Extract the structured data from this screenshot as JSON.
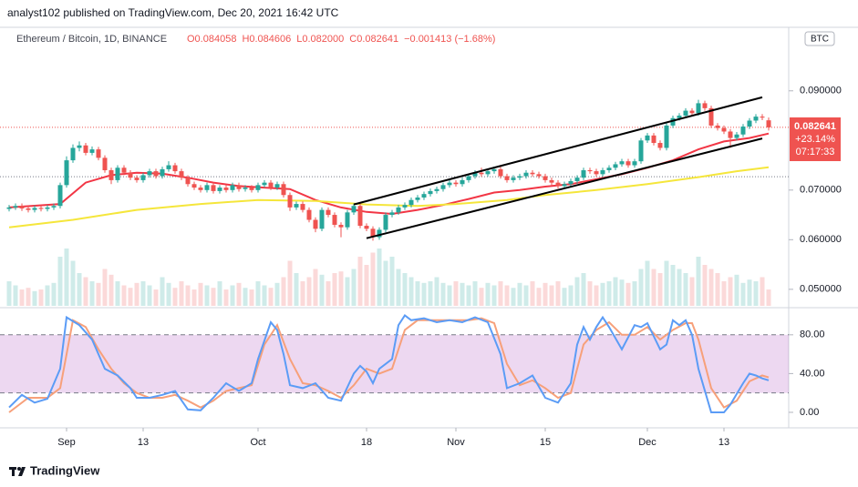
{
  "chart_data": {
    "type": "candlestick",
    "header": "analyst102 published on TradingView.com, Dec 20, 2021 16:42 UTC",
    "symbol": "Ethereum / Bitcoin, 1D, BINANCE",
    "ohlc_text": [
      "O0.084058",
      "H0.084606",
      "L0.082000",
      "C0.082641",
      "−0.001413 (−1.68%)"
    ],
    "currency": "BTC",
    "price_tag": [
      "0.082641",
      "+23.14%",
      "07:17:33"
    ],
    "last_price": 0.082641,
    "reference_price": 0.0727,
    "ylim": [
      0.0463,
      0.1028
    ],
    "yticks": [
      {
        "value": 0.09,
        "label": "0.090000"
      },
      {
        "value": 0.07,
        "label": "0.070000"
      },
      {
        "value": 0.06,
        "label": "0.060000"
      },
      {
        "value": 0.05,
        "label": "0.050000"
      }
    ],
    "xlim": [
      0,
      119
    ],
    "xticks": [
      {
        "value": 9,
        "label": "Sep"
      },
      {
        "value": 21,
        "label": "13"
      },
      {
        "value": 39,
        "label": "Oct"
      },
      {
        "value": 56,
        "label": "18"
      },
      {
        "value": 70,
        "label": "Nov"
      },
      {
        "value": 84,
        "label": "15"
      },
      {
        "value": 100,
        "label": "Dec"
      },
      {
        "value": 112,
        "label": "13"
      }
    ],
    "up_color": "#26a69a",
    "down_color": "#ef5350",
    "ohlc": {
      "open": [
        0.0662,
        0.0665,
        0.0668,
        0.0663,
        0.066,
        0.0664,
        0.0662,
        0.0665,
        0.0668,
        0.071,
        0.076,
        0.0785,
        0.079,
        0.0775,
        0.0782,
        0.0765,
        0.074,
        0.072,
        0.0745,
        0.0735,
        0.0725,
        0.072,
        0.073,
        0.0738,
        0.0728,
        0.0742,
        0.075,
        0.0738,
        0.0725,
        0.0712,
        0.0705,
        0.07,
        0.071,
        0.0698,
        0.0705,
        0.07,
        0.071,
        0.0702,
        0.0705,
        0.07,
        0.071,
        0.0715,
        0.0705,
        0.0712,
        0.069,
        0.0665,
        0.0672,
        0.066,
        0.064,
        0.0622,
        0.066,
        0.065,
        0.063,
        0.0625,
        0.0655,
        0.0668,
        0.0628,
        0.0622,
        0.0605,
        0.062,
        0.065,
        0.0655,
        0.0665,
        0.067,
        0.068,
        0.0685,
        0.0692,
        0.0698,
        0.0702,
        0.071,
        0.0715,
        0.0712,
        0.072,
        0.0728,
        0.0735,
        0.0732,
        0.0738,
        0.0742,
        0.0728,
        0.072,
        0.0725,
        0.0728,
        0.0735,
        0.0732,
        0.0728,
        0.072,
        0.0715,
        0.0708,
        0.0712,
        0.0718,
        0.0725,
        0.074,
        0.0738,
        0.0732,
        0.074,
        0.0745,
        0.0752,
        0.0758,
        0.075,
        0.0758,
        0.08,
        0.081,
        0.0795,
        0.0785,
        0.083,
        0.0845,
        0.085,
        0.086,
        0.0855,
        0.0875,
        0.0865,
        0.083,
        0.0825,
        0.0818,
        0.0805,
        0.0812,
        0.0828,
        0.084,
        0.0848,
        0.084058
      ],
      "high": [
        0.067,
        0.0673,
        0.0673,
        0.0668,
        0.0669,
        0.0669,
        0.067,
        0.0673,
        0.0715,
        0.0768,
        0.0792,
        0.0798,
        0.0795,
        0.0788,
        0.0787,
        0.077,
        0.0745,
        0.075,
        0.075,
        0.074,
        0.073,
        0.0735,
        0.0743,
        0.0743,
        0.0747,
        0.0758,
        0.0755,
        0.0743,
        0.073,
        0.0717,
        0.071,
        0.0715,
        0.0715,
        0.071,
        0.071,
        0.0715,
        0.0715,
        0.071,
        0.071,
        0.0715,
        0.072,
        0.072,
        0.0717,
        0.0717,
        0.0695,
        0.0677,
        0.0677,
        0.0665,
        0.0645,
        0.0665,
        0.0665,
        0.0655,
        0.0635,
        0.066,
        0.0673,
        0.0673,
        0.0633,
        0.0627,
        0.0625,
        0.0655,
        0.066,
        0.067,
        0.0675,
        0.0685,
        0.069,
        0.0697,
        0.0703,
        0.0707,
        0.0715,
        0.072,
        0.072,
        0.0725,
        0.0733,
        0.074,
        0.0745,
        0.0743,
        0.0747,
        0.0747,
        0.0733,
        0.073,
        0.0733,
        0.074,
        0.074,
        0.0737,
        0.0733,
        0.0725,
        0.072,
        0.0717,
        0.0723,
        0.073,
        0.0745,
        0.0745,
        0.0743,
        0.0745,
        0.075,
        0.0757,
        0.0763,
        0.0763,
        0.0763,
        0.0805,
        0.0815,
        0.0815,
        0.08,
        0.0835,
        0.085,
        0.0855,
        0.0865,
        0.0865,
        0.0882,
        0.088,
        0.087,
        0.0835,
        0.083,
        0.0823,
        0.0817,
        0.0833,
        0.0845,
        0.0853,
        0.0853,
        0.084606
      ],
      "low": [
        0.0657,
        0.066,
        0.0658,
        0.0655,
        0.0655,
        0.0657,
        0.0657,
        0.066,
        0.0663,
        0.0705,
        0.0755,
        0.0778,
        0.077,
        0.077,
        0.076,
        0.0735,
        0.0712,
        0.0715,
        0.073,
        0.072,
        0.0715,
        0.0715,
        0.0725,
        0.0723,
        0.0723,
        0.0737,
        0.0733,
        0.072,
        0.0707,
        0.07,
        0.0695,
        0.0695,
        0.0693,
        0.0693,
        0.0695,
        0.0695,
        0.0697,
        0.0697,
        0.0695,
        0.0695,
        0.0705,
        0.07,
        0.07,
        0.0685,
        0.0658,
        0.066,
        0.0655,
        0.0635,
        0.0615,
        0.0617,
        0.0645,
        0.0625,
        0.0605,
        0.062,
        0.065,
        0.0623,
        0.0617,
        0.0598,
        0.06,
        0.0615,
        0.0645,
        0.065,
        0.066,
        0.0665,
        0.0675,
        0.068,
        0.0687,
        0.0693,
        0.0697,
        0.0705,
        0.0707,
        0.0707,
        0.0715,
        0.0723,
        0.0727,
        0.0727,
        0.0733,
        0.0723,
        0.0715,
        0.0715,
        0.072,
        0.0723,
        0.0727,
        0.0723,
        0.0715,
        0.071,
        0.0703,
        0.0703,
        0.0707,
        0.0713,
        0.072,
        0.0733,
        0.0727,
        0.0727,
        0.0735,
        0.074,
        0.0747,
        0.0745,
        0.0745,
        0.0753,
        0.0795,
        0.079,
        0.078,
        0.078,
        0.0825,
        0.084,
        0.0845,
        0.085,
        0.085,
        0.086,
        0.0825,
        0.082,
        0.0813,
        0.0785,
        0.08,
        0.0807,
        0.0823,
        0.0835,
        0.0841,
        0.082
      ],
      "close": [
        0.0665,
        0.0668,
        0.0663,
        0.066,
        0.0664,
        0.0662,
        0.0665,
        0.0668,
        0.071,
        0.076,
        0.0785,
        0.079,
        0.0775,
        0.0782,
        0.0765,
        0.074,
        0.072,
        0.0745,
        0.0735,
        0.0725,
        0.072,
        0.073,
        0.0738,
        0.0728,
        0.0742,
        0.075,
        0.0738,
        0.0725,
        0.0712,
        0.0705,
        0.07,
        0.071,
        0.0698,
        0.0705,
        0.07,
        0.071,
        0.0702,
        0.0705,
        0.07,
        0.071,
        0.0715,
        0.0705,
        0.0712,
        0.069,
        0.0665,
        0.0672,
        0.066,
        0.064,
        0.0622,
        0.066,
        0.065,
        0.063,
        0.0625,
        0.0655,
        0.0668,
        0.0628,
        0.0622,
        0.0605,
        0.062,
        0.065,
        0.0655,
        0.0665,
        0.067,
        0.068,
        0.0685,
        0.0692,
        0.0698,
        0.0702,
        0.071,
        0.0715,
        0.0712,
        0.072,
        0.0728,
        0.0735,
        0.0732,
        0.0738,
        0.0742,
        0.0728,
        0.072,
        0.0725,
        0.0728,
        0.0735,
        0.0732,
        0.0728,
        0.072,
        0.0715,
        0.0708,
        0.0712,
        0.0718,
        0.0725,
        0.074,
        0.0738,
        0.0732,
        0.074,
        0.0745,
        0.0752,
        0.0758,
        0.075,
        0.0758,
        0.08,
        0.081,
        0.0795,
        0.0785,
        0.083,
        0.0845,
        0.085,
        0.086,
        0.0855,
        0.0875,
        0.0865,
        0.083,
        0.0825,
        0.0818,
        0.0805,
        0.0812,
        0.0828,
        0.084,
        0.0848,
        0.0846,
        0.082641
      ]
    },
    "volume": [
      30,
      25,
      20,
      22,
      18,
      20,
      25,
      28,
      60,
      70,
      55,
      40,
      35,
      30,
      28,
      45,
      38,
      30,
      25,
      22,
      28,
      30,
      25,
      20,
      35,
      28,
      22,
      30,
      25,
      20,
      28,
      25,
      22,
      30,
      20,
      25,
      28,
      22,
      20,
      30,
      25,
      22,
      28,
      35,
      55,
      40,
      30,
      35,
      45,
      38,
      30,
      40,
      42,
      35,
      45,
      60,
      50,
      65,
      70,
      55,
      60,
      45,
      40,
      35,
      30,
      28,
      30,
      35,
      28,
      25,
      30,
      28,
      25,
      30,
      22,
      28,
      25,
      30,
      25,
      22,
      28,
      25,
      30,
      22,
      28,
      25,
      30,
      22,
      25,
      35,
      40,
      30,
      25,
      28,
      30,
      35,
      32,
      28,
      30,
      45,
      55,
      45,
      40,
      55,
      50,
      45,
      40,
      35,
      60,
      50,
      45,
      40,
      30,
      35,
      38,
      28,
      32,
      30,
      35,
      20
    ],
    "moving_averages": [
      {
        "color": "#f23645",
        "x": [
          0,
          8,
          12,
          16,
          20,
          24,
          28,
          32,
          36,
          40,
          44,
          48,
          52,
          56,
          60,
          64,
          68,
          72,
          76,
          80,
          84,
          88,
          92,
          96,
          100,
          104,
          108,
          112,
          116,
          119
        ],
        "values": [
          0.0665,
          0.0672,
          0.0715,
          0.073,
          0.0735,
          0.0733,
          0.0725,
          0.0715,
          0.0708,
          0.0705,
          0.0702,
          0.068,
          0.0665,
          0.0656,
          0.0652,
          0.066,
          0.067,
          0.0682,
          0.0695,
          0.07,
          0.0707,
          0.0712,
          0.0722,
          0.0732,
          0.0745,
          0.076,
          0.0782,
          0.0798,
          0.0805,
          0.0814
        ]
      },
      {
        "color": "#f5e63b",
        "x": [
          0,
          10,
          20,
          30,
          39,
          48,
          56,
          64,
          70,
          78,
          84,
          92,
          100,
          108,
          114,
          119
        ],
        "values": [
          0.0625,
          0.064,
          0.066,
          0.0672,
          0.068,
          0.0678,
          0.0671,
          0.0668,
          0.0672,
          0.068,
          0.069,
          0.07,
          0.0712,
          0.0726,
          0.0738,
          0.0746
        ]
      }
    ],
    "trendlines": [
      {
        "x": [
          54,
          118
        ],
        "values": [
          0.0671,
          0.0887
        ]
      },
      {
        "x": [
          56,
          118
        ],
        "values": [
          0.0603,
          0.0804
        ]
      }
    ],
    "stochastic": {
      "ylim": [
        -16,
        108
      ],
      "band": [
        20,
        80
      ],
      "yticks": [
        {
          "value": 80,
          "label": "80.00"
        },
        {
          "value": 40,
          "label": "40.00"
        },
        {
          "value": 0,
          "label": "0.00"
        }
      ],
      "series": [
        {
          "color": "#5b9cf6",
          "x": [
            0,
            2,
            4,
            6,
            8,
            9,
            11,
            13,
            15,
            17,
            19,
            20,
            22,
            24,
            26,
            28,
            30,
            32,
            34,
            36,
            38,
            39,
            41,
            42,
            43,
            44,
            46,
            48,
            50,
            52,
            54,
            55,
            56,
            57,
            58,
            60,
            61,
            62,
            63,
            65,
            67,
            69,
            71,
            73,
            75,
            77,
            78,
            80,
            82,
            84,
            86,
            88,
            89,
            90,
            91,
            92,
            93,
            94,
            96,
            98,
            99,
            100,
            102,
            103,
            104,
            105,
            106,
            107,
            108,
            110,
            112,
            113,
            115,
            116,
            117,
            118,
            119
          ],
          "values": [
            5,
            18,
            10,
            14,
            45,
            98,
            90,
            75,
            45,
            38,
            25,
            15,
            15,
            18,
            22,
            3,
            2,
            15,
            30,
            22,
            30,
            55,
            93,
            85,
            60,
            28,
            25,
            30,
            15,
            12,
            40,
            48,
            42,
            30,
            45,
            55,
            90,
            100,
            95,
            97,
            93,
            95,
            93,
            98,
            93,
            60,
            25,
            30,
            38,
            15,
            10,
            30,
            70,
            88,
            75,
            88,
            98,
            88,
            65,
            90,
            88,
            92,
            65,
            70,
            95,
            90,
            95,
            80,
            45,
            0,
            0,
            8,
            30,
            40,
            38,
            35,
            33
          ]
        },
        {
          "color": "#f7a07a",
          "x": [
            0,
            3,
            6,
            8,
            10,
            12,
            14,
            16,
            18,
            20,
            22,
            24,
            26,
            28,
            30,
            32,
            34,
            36,
            38,
            40,
            42,
            44,
            46,
            48,
            50,
            52,
            54,
            56,
            58,
            60,
            62,
            64,
            66,
            68,
            70,
            72,
            74,
            76,
            78,
            80,
            82,
            84,
            86,
            88,
            90,
            92,
            94,
            96,
            98,
            100,
            102,
            104,
            106,
            107,
            108,
            110,
            112,
            114,
            116,
            118,
            119
          ],
          "values": [
            0,
            15,
            15,
            25,
            95,
            88,
            65,
            45,
            30,
            20,
            15,
            15,
            18,
            12,
            5,
            12,
            22,
            25,
            28,
            70,
            90,
            55,
            30,
            28,
            22,
            15,
            28,
            45,
            40,
            45,
            85,
            95,
            95,
            95,
            95,
            95,
            97,
            92,
            50,
            28,
            33,
            25,
            15,
            20,
            70,
            85,
            93,
            80,
            80,
            88,
            75,
            85,
            92,
            92,
            75,
            25,
            5,
            12,
            32,
            38,
            36
          ]
        }
      ]
    },
    "footer": "TradingView"
  }
}
